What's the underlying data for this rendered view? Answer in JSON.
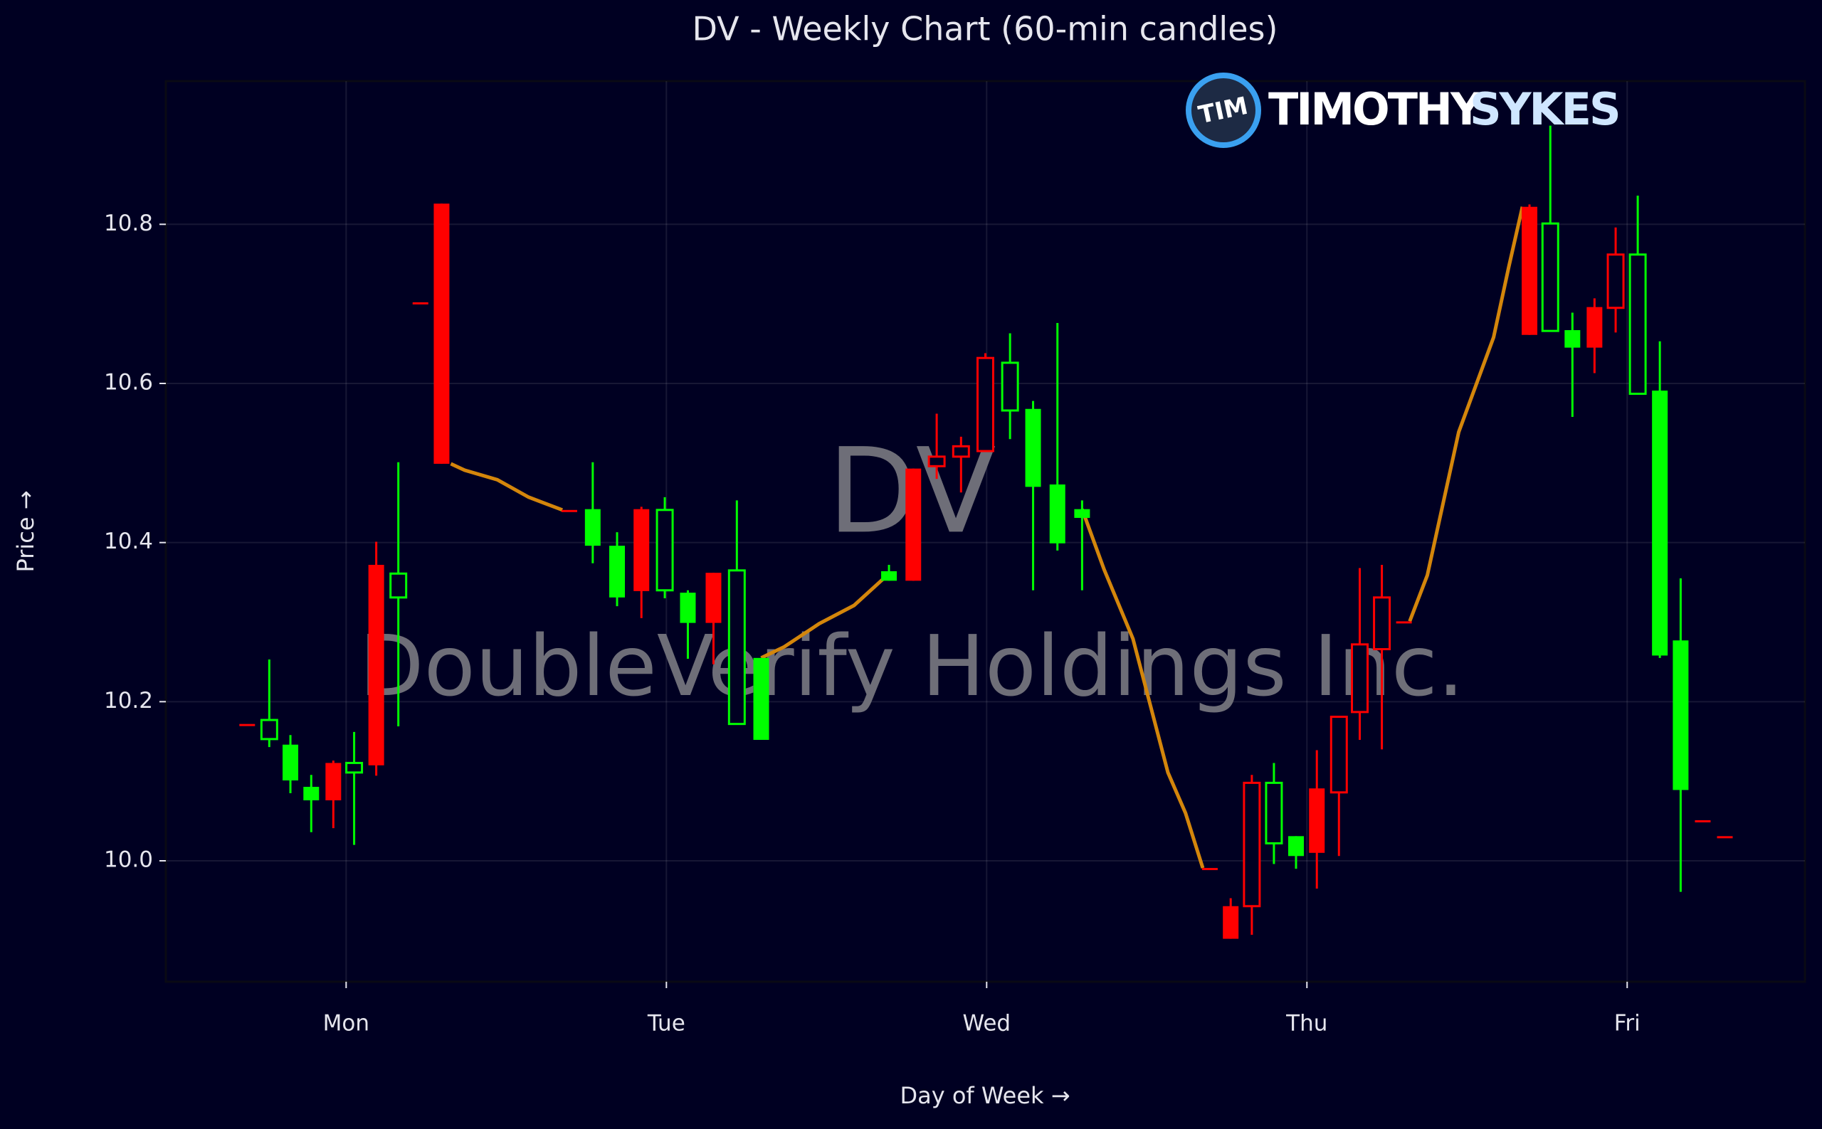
{
  "chart_data": {
    "type": "candlestick",
    "title": "DV - Weekly Chart (60-min candles)",
    "x_label": "Day of Week →",
    "y_label": "Price →",
    "watermark": {
      "symbol": "DV",
      "company": "DoubleVerify Holdings Inc."
    },
    "logo": {
      "badge": "TIM",
      "name": "TIMOTHY",
      "name2": "SYKES"
    },
    "up_color": "#00ff00",
    "down_color": "#ff0000",
    "grid": true,
    "x": [
      -0.309,
      -0.24,
      -0.174,
      -0.109,
      -0.04,
      0.025,
      0.094,
      0.163,
      0.232,
      0.298,
      0.697,
      0.77,
      0.846,
      0.922,
      0.995,
      1.067,
      1.147,
      1.22,
      1.296,
      1.695,
      1.771,
      1.844,
      1.92,
      1.996,
      2.073,
      2.145,
      2.221,
      2.298,
      2.697,
      2.762,
      2.828,
      2.897,
      2.966,
      3.031,
      3.1,
      3.165,
      3.234,
      3.303,
      3.695,
      3.76,
      3.829,
      3.898,
      3.964,
      4.033,
      4.102,
      4.167,
      4.236,
      4.305
    ],
    "open": [
      10.172,
      10.153,
      10.101,
      10.076,
      10.123,
      10.111,
      10.372,
      10.331,
      10.702,
      10.826,
      10.441,
      10.396,
      10.331,
      10.442,
      10.34,
      10.299,
      10.362,
      10.172,
      10.152,
      10.352,
      10.493,
      10.508,
      10.521,
      10.632,
      10.566,
      10.47,
      10.399,
      10.431,
      9.991,
      9.943,
      10.098,
      10.022,
      10.006,
      10.091,
      10.181,
      10.272,
      10.331,
      10.301,
      10.822,
      10.666,
      10.645,
      10.696,
      10.762,
      10.587,
      10.258,
      10.089,
      10.051,
      10.031
    ],
    "high": [
      10.172,
      10.253,
      10.158,
      10.108,
      10.126,
      10.162,
      10.401,
      10.501,
      10.702,
      10.826,
      10.441,
      10.501,
      10.413,
      10.445,
      10.457,
      10.34,
      10.362,
      10.453,
      10.255,
      10.372,
      10.493,
      10.562,
      10.533,
      10.638,
      10.663,
      10.578,
      10.676,
      10.453,
      9.991,
      9.953,
      10.108,
      10.123,
      10.031,
      10.139,
      10.181,
      10.368,
      10.372,
      10.301,
      10.825,
      10.924,
      10.689,
      10.707,
      10.796,
      10.836,
      10.653,
      10.355,
      10.051,
      10.031
    ],
    "low": [
      10.172,
      10.143,
      10.085,
      10.036,
      10.041,
      10.02,
      10.107,
      10.169,
      10.702,
      10.499,
      10.441,
      10.374,
      10.32,
      10.305,
      10.33,
      10.254,
      10.247,
      10.171,
      10.152,
      10.352,
      10.352,
      10.48,
      10.463,
      10.514,
      10.53,
      10.34,
      10.39,
      10.34,
      9.991,
      9.902,
      9.907,
      9.996,
      9.99,
      9.965,
      10.006,
      10.152,
      10.14,
      10.301,
      10.661,
      10.666,
      10.558,
      10.613,
      10.664,
      10.587,
      10.255,
      9.961,
      10.051,
      10.031
    ],
    "close": [
      10.172,
      10.177,
      10.146,
      10.093,
      10.076,
      10.123,
      10.12,
      10.361,
      10.702,
      10.499,
      10.441,
      10.442,
      10.396,
      10.339,
      10.441,
      10.337,
      10.299,
      10.365,
      10.255,
      10.364,
      10.352,
      10.496,
      10.508,
      10.515,
      10.626,
      10.568,
      10.473,
      10.442,
      9.991,
      9.902,
      9.943,
      10.098,
      10.031,
      10.01,
      10.086,
      10.187,
      10.266,
      10.301,
      10.661,
      10.801,
      10.667,
      10.645,
      10.695,
      10.762,
      10.591,
      10.277,
      10.051,
      10.031
    ],
    "hollow": [
      false,
      true,
      false,
      false,
      false,
      true,
      false,
      true,
      false,
      false,
      false,
      false,
      false,
      false,
      true,
      false,
      false,
      true,
      false,
      false,
      false,
      true,
      true,
      true,
      true,
      false,
      false,
      false,
      false,
      false,
      true,
      true,
      false,
      false,
      true,
      true,
      true,
      false,
      false,
      true,
      false,
      false,
      true,
      true,
      false,
      false,
      false,
      false
    ],
    "line_color": "#d4860b",
    "line_segments": [
      {
        "x": [
          0.327,
          0.37,
          0.472,
          0.57,
          0.675
        ],
        "values": [
          10.499,
          10.491,
          10.479,
          10.457,
          10.441
        ]
      },
      {
        "x": [
          1.296,
          1.368,
          1.477,
          1.586,
          1.695
        ],
        "values": [
          10.255,
          10.269,
          10.298,
          10.321,
          10.361
        ]
      },
      {
        "x": [
          2.298,
          2.367,
          2.457,
          2.566,
          2.621,
          2.675
        ],
        "values": [
          10.442,
          10.366,
          10.279,
          10.111,
          10.06,
          9.991
        ]
      },
      {
        "x": [
          3.321,
          3.376,
          3.474,
          3.583,
          3.63,
          3.673
        ],
        "values": [
          10.301,
          10.359,
          10.539,
          10.658,
          10.746,
          10.822
        ]
      }
    ],
    "xlim": [
      -0.563,
      4.555
    ],
    "ylim": [
      9.848,
      10.98
    ],
    "xticks": [
      {
        "value": 0,
        "label": "Mon"
      },
      {
        "value": 1,
        "label": "Tue"
      },
      {
        "value": 2,
        "label": "Wed"
      },
      {
        "value": 3,
        "label": "Thu"
      },
      {
        "value": 4,
        "label": "Fri"
      }
    ],
    "yticks": [
      {
        "value": 10,
        "label": "10.0"
      },
      10.2,
      10.4,
      10.6,
      10.8
    ]
  }
}
